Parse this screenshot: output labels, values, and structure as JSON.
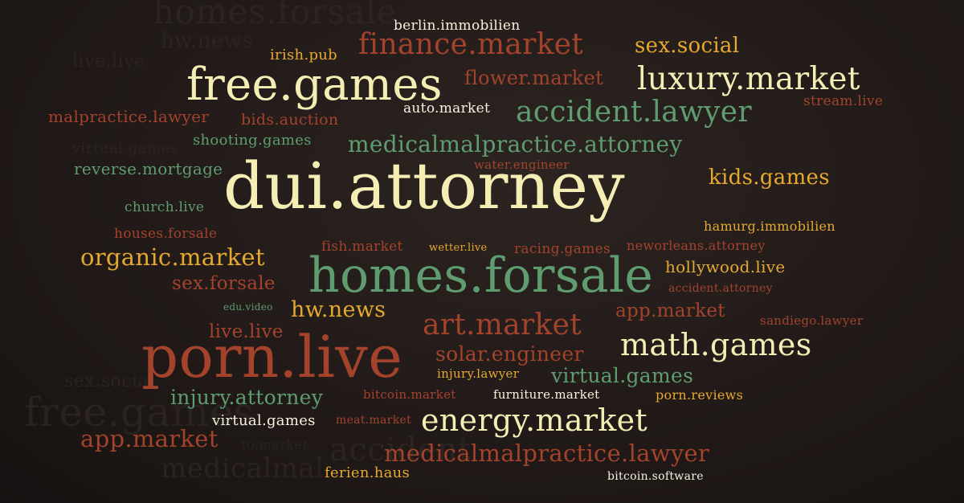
{
  "tag_cloud": {
    "background_color": "#1f1816",
    "palette": {
      "cream": "#f5eeb4",
      "gold": "#e6a92f",
      "green": "#5f9c6f",
      "red": "#a3432c",
      "white": "#f7f3df"
    },
    "ghost_words": [
      "homes.forsale",
      "hw.news",
      "live.live",
      "sex.social",
      "free.games",
      "virtual.games",
      "medicalmal",
      "accident",
      "bids.auction",
      "to.market"
    ],
    "words": [
      "dui.attorney",
      "homes.forsale",
      "porn.live",
      "free.games",
      "luxury.market",
      "math.games",
      "energy.market",
      "finance.market",
      "accident.lawyer",
      "medicalmalpractice.attorney",
      "medicalmalpractice.lawyer",
      "art.market",
      "organic.market",
      "hw.news",
      "solar.engineer",
      "virtual.games",
      "injury.attorney",
      "app.market",
      "app.market",
      "kids.games",
      "sex.social",
      "flower.market",
      "sex.forsale",
      "hollywood.live",
      "live.live",
      "reverse.mortgage",
      "malpractice.lawyer",
      "shooting.games",
      "bids.auction",
      "berlin.immobilien",
      "irish.pub",
      "auto.market",
      "stream.live",
      "water.engineer",
      "church.live",
      "houses.forsale",
      "fish.market",
      "wetter.live",
      "racing.games",
      "neworleans.attorney",
      "hamurg.immobilien",
      "accident.attorney",
      "edu.video",
      "sandiego.lawyer",
      "injury.lawyer",
      "bitcoin.market",
      "furniture.market",
      "porn.reviews",
      "virtual.games",
      "meat.market",
      "ferien.haus",
      "bitcoin.software"
    ]
  }
}
